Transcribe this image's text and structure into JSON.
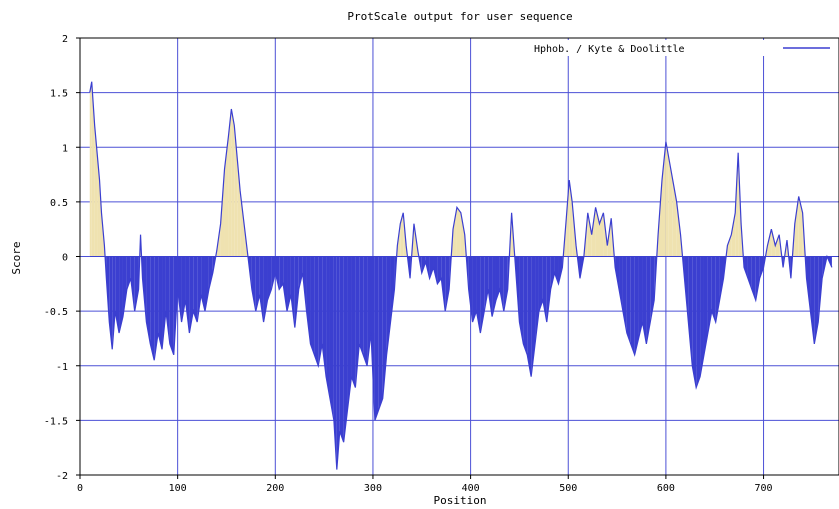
{
  "chart_data": {
    "type": "area",
    "title": "ProtScale output for user sequence",
    "xlabel": "Position",
    "ylabel": "Score",
    "xlim": [
      0,
      770
    ],
    "ylim": [
      -2,
      2
    ],
    "x_ticks": [
      0,
      100,
      200,
      300,
      400,
      500,
      600,
      700
    ],
    "y_ticks": [
      2,
      1.5,
      1,
      0.5,
      0,
      -0.5,
      -1,
      -1.5,
      -2
    ],
    "x_tick_labels": [
      "0",
      "100",
      "200",
      "300",
      "400",
      "500",
      "600",
      "700"
    ],
    "y_tick_labels": [
      "2",
      "1.5",
      "1",
      "0.5",
      "0",
      "-0.5",
      "-1",
      "-1.5",
      "-2"
    ],
    "grid": true,
    "legend_position": "top-right",
    "colors": {
      "negative_fill": "#3b3fd0",
      "positive_fill": "#efe2b0",
      "line": "#3b3fd0",
      "grid": "#4c50d6",
      "frame": "#000000"
    },
    "series": [
      {
        "name": "Hphob. / Kyte & Doolittle",
        "points": [
          [
            10,
            1.5
          ],
          [
            12,
            1.6
          ],
          [
            15,
            1.2
          ],
          [
            18,
            0.9
          ],
          [
            20,
            0.7
          ],
          [
            22,
            0.4
          ],
          [
            25,
            0.1
          ],
          [
            27,
            -0.2
          ],
          [
            30,
            -0.6
          ],
          [
            33,
            -0.85
          ],
          [
            36,
            -0.5
          ],
          [
            40,
            -0.7
          ],
          [
            44,
            -0.55
          ],
          [
            48,
            -0.3
          ],
          [
            52,
            -0.2
          ],
          [
            56,
            -0.5
          ],
          [
            60,
            -0.3
          ],
          [
            62,
            0.2
          ],
          [
            64,
            -0.2
          ],
          [
            68,
            -0.6
          ],
          [
            72,
            -0.8
          ],
          [
            76,
            -0.95
          ],
          [
            80,
            -0.7
          ],
          [
            84,
            -0.85
          ],
          [
            88,
            -0.5
          ],
          [
            92,
            -0.8
          ],
          [
            96,
            -0.9
          ],
          [
            100,
            -0.3
          ],
          [
            104,
            -0.6
          ],
          [
            108,
            -0.4
          ],
          [
            112,
            -0.7
          ],
          [
            116,
            -0.5
          ],
          [
            120,
            -0.6
          ],
          [
            124,
            -0.35
          ],
          [
            128,
            -0.5
          ],
          [
            132,
            -0.3
          ],
          [
            136,
            -0.15
          ],
          [
            140,
            0.05
          ],
          [
            144,
            0.3
          ],
          [
            148,
            0.8
          ],
          [
            152,
            1.1
          ],
          [
            155,
            1.35
          ],
          [
            158,
            1.2
          ],
          [
            161,
            0.9
          ],
          [
            164,
            0.6
          ],
          [
            168,
            0.3
          ],
          [
            172,
            0.0
          ],
          [
            176,
            -0.3
          ],
          [
            180,
            -0.5
          ],
          [
            184,
            -0.35
          ],
          [
            188,
            -0.6
          ],
          [
            192,
            -0.4
          ],
          [
            196,
            -0.3
          ],
          [
            200,
            -0.15
          ],
          [
            204,
            -0.3
          ],
          [
            208,
            -0.25
          ],
          [
            212,
            -0.5
          ],
          [
            216,
            -0.35
          ],
          [
            220,
            -0.65
          ],
          [
            224,
            -0.3
          ],
          [
            228,
            -0.15
          ],
          [
            232,
            -0.5
          ],
          [
            236,
            -0.8
          ],
          [
            240,
            -0.9
          ],
          [
            244,
            -1.0
          ],
          [
            248,
            -0.8
          ],
          [
            252,
            -1.1
          ],
          [
            256,
            -1.3
          ],
          [
            260,
            -1.5
          ],
          [
            263,
            -1.95
          ],
          [
            266,
            -1.6
          ],
          [
            270,
            -1.7
          ],
          [
            274,
            -1.4
          ],
          [
            278,
            -1.1
          ],
          [
            282,
            -1.2
          ],
          [
            286,
            -0.8
          ],
          [
            290,
            -0.9
          ],
          [
            294,
            -1.0
          ],
          [
            298,
            -0.7
          ],
          [
            302,
            -1.5
          ],
          [
            306,
            -1.4
          ],
          [
            310,
            -1.3
          ],
          [
            314,
            -0.9
          ],
          [
            318,
            -0.6
          ],
          [
            322,
            -0.3
          ],
          [
            325,
            0.1
          ],
          [
            328,
            0.3
          ],
          [
            331,
            0.4
          ],
          [
            334,
            0.1
          ],
          [
            338,
            -0.2
          ],
          [
            342,
            0.3
          ],
          [
            346,
            0.05
          ],
          [
            350,
            -0.15
          ],
          [
            354,
            -0.05
          ],
          [
            358,
            -0.2
          ],
          [
            362,
            -0.1
          ],
          [
            366,
            -0.25
          ],
          [
            370,
            -0.2
          ],
          [
            374,
            -0.5
          ],
          [
            378,
            -0.3
          ],
          [
            382,
            0.25
          ],
          [
            386,
            0.45
          ],
          [
            390,
            0.4
          ],
          [
            394,
            0.2
          ],
          [
            398,
            -0.3
          ],
          [
            402,
            -0.6
          ],
          [
            406,
            -0.5
          ],
          [
            410,
            -0.7
          ],
          [
            414,
            -0.5
          ],
          [
            418,
            -0.3
          ],
          [
            422,
            -0.55
          ],
          [
            426,
            -0.4
          ],
          [
            430,
            -0.3
          ],
          [
            434,
            -0.5
          ],
          [
            438,
            -0.3
          ],
          [
            442,
            0.4
          ],
          [
            446,
            -0.1
          ],
          [
            450,
            -0.6
          ],
          [
            454,
            -0.8
          ],
          [
            458,
            -0.9
          ],
          [
            462,
            -1.1
          ],
          [
            466,
            -0.8
          ],
          [
            470,
            -0.5
          ],
          [
            474,
            -0.4
          ],
          [
            478,
            -0.6
          ],
          [
            482,
            -0.3
          ],
          [
            486,
            -0.15
          ],
          [
            490,
            -0.25
          ],
          [
            494,
            -0.1
          ],
          [
            498,
            0.35
          ],
          [
            501,
            0.7
          ],
          [
            504,
            0.5
          ],
          [
            508,
            0.1
          ],
          [
            512,
            -0.2
          ],
          [
            516,
            0.0
          ],
          [
            520,
            0.4
          ],
          [
            524,
            0.2
          ],
          [
            528,
            0.45
          ],
          [
            532,
            0.3
          ],
          [
            536,
            0.4
          ],
          [
            540,
            0.1
          ],
          [
            544,
            0.35
          ],
          [
            548,
            -0.1
          ],
          [
            552,
            -0.3
          ],
          [
            556,
            -0.5
          ],
          [
            560,
            -0.7
          ],
          [
            564,
            -0.8
          ],
          [
            568,
            -0.9
          ],
          [
            572,
            -0.75
          ],
          [
            576,
            -0.6
          ],
          [
            580,
            -0.8
          ],
          [
            584,
            -0.6
          ],
          [
            588,
            -0.4
          ],
          [
            592,
            0.2
          ],
          [
            596,
            0.7
          ],
          [
            600,
            1.05
          ],
          [
            603,
            0.9
          ],
          [
            607,
            0.7
          ],
          [
            611,
            0.5
          ],
          [
            615,
            0.2
          ],
          [
            619,
            -0.2
          ],
          [
            623,
            -0.6
          ],
          [
            627,
            -1.0
          ],
          [
            631,
            -1.2
          ],
          [
            635,
            -1.1
          ],
          [
            639,
            -0.9
          ],
          [
            643,
            -0.7
          ],
          [
            647,
            -0.5
          ],
          [
            651,
            -0.6
          ],
          [
            655,
            -0.4
          ],
          [
            659,
            -0.2
          ],
          [
            663,
            0.1
          ],
          [
            667,
            0.2
          ],
          [
            671,
            0.4
          ],
          [
            674,
            0.95
          ],
          [
            677,
            0.3
          ],
          [
            680,
            -0.1
          ],
          [
            684,
            -0.2
          ],
          [
            688,
            -0.3
          ],
          [
            692,
            -0.4
          ],
          [
            696,
            -0.2
          ],
          [
            700,
            -0.1
          ],
          [
            704,
            0.1
          ],
          [
            708,
            0.25
          ],
          [
            712,
            0.1
          ],
          [
            716,
            0.2
          ],
          [
            720,
            -0.1
          ],
          [
            724,
            0.15
          ],
          [
            728,
            -0.2
          ],
          [
            732,
            0.3
          ],
          [
            736,
            0.55
          ],
          [
            740,
            0.4
          ],
          [
            744,
            -0.2
          ],
          [
            748,
            -0.5
          ],
          [
            752,
            -0.8
          ],
          [
            756,
            -0.6
          ],
          [
            760,
            -0.2
          ],
          [
            765,
            0.0
          ],
          [
            770,
            -0.1
          ]
        ]
      }
    ]
  }
}
